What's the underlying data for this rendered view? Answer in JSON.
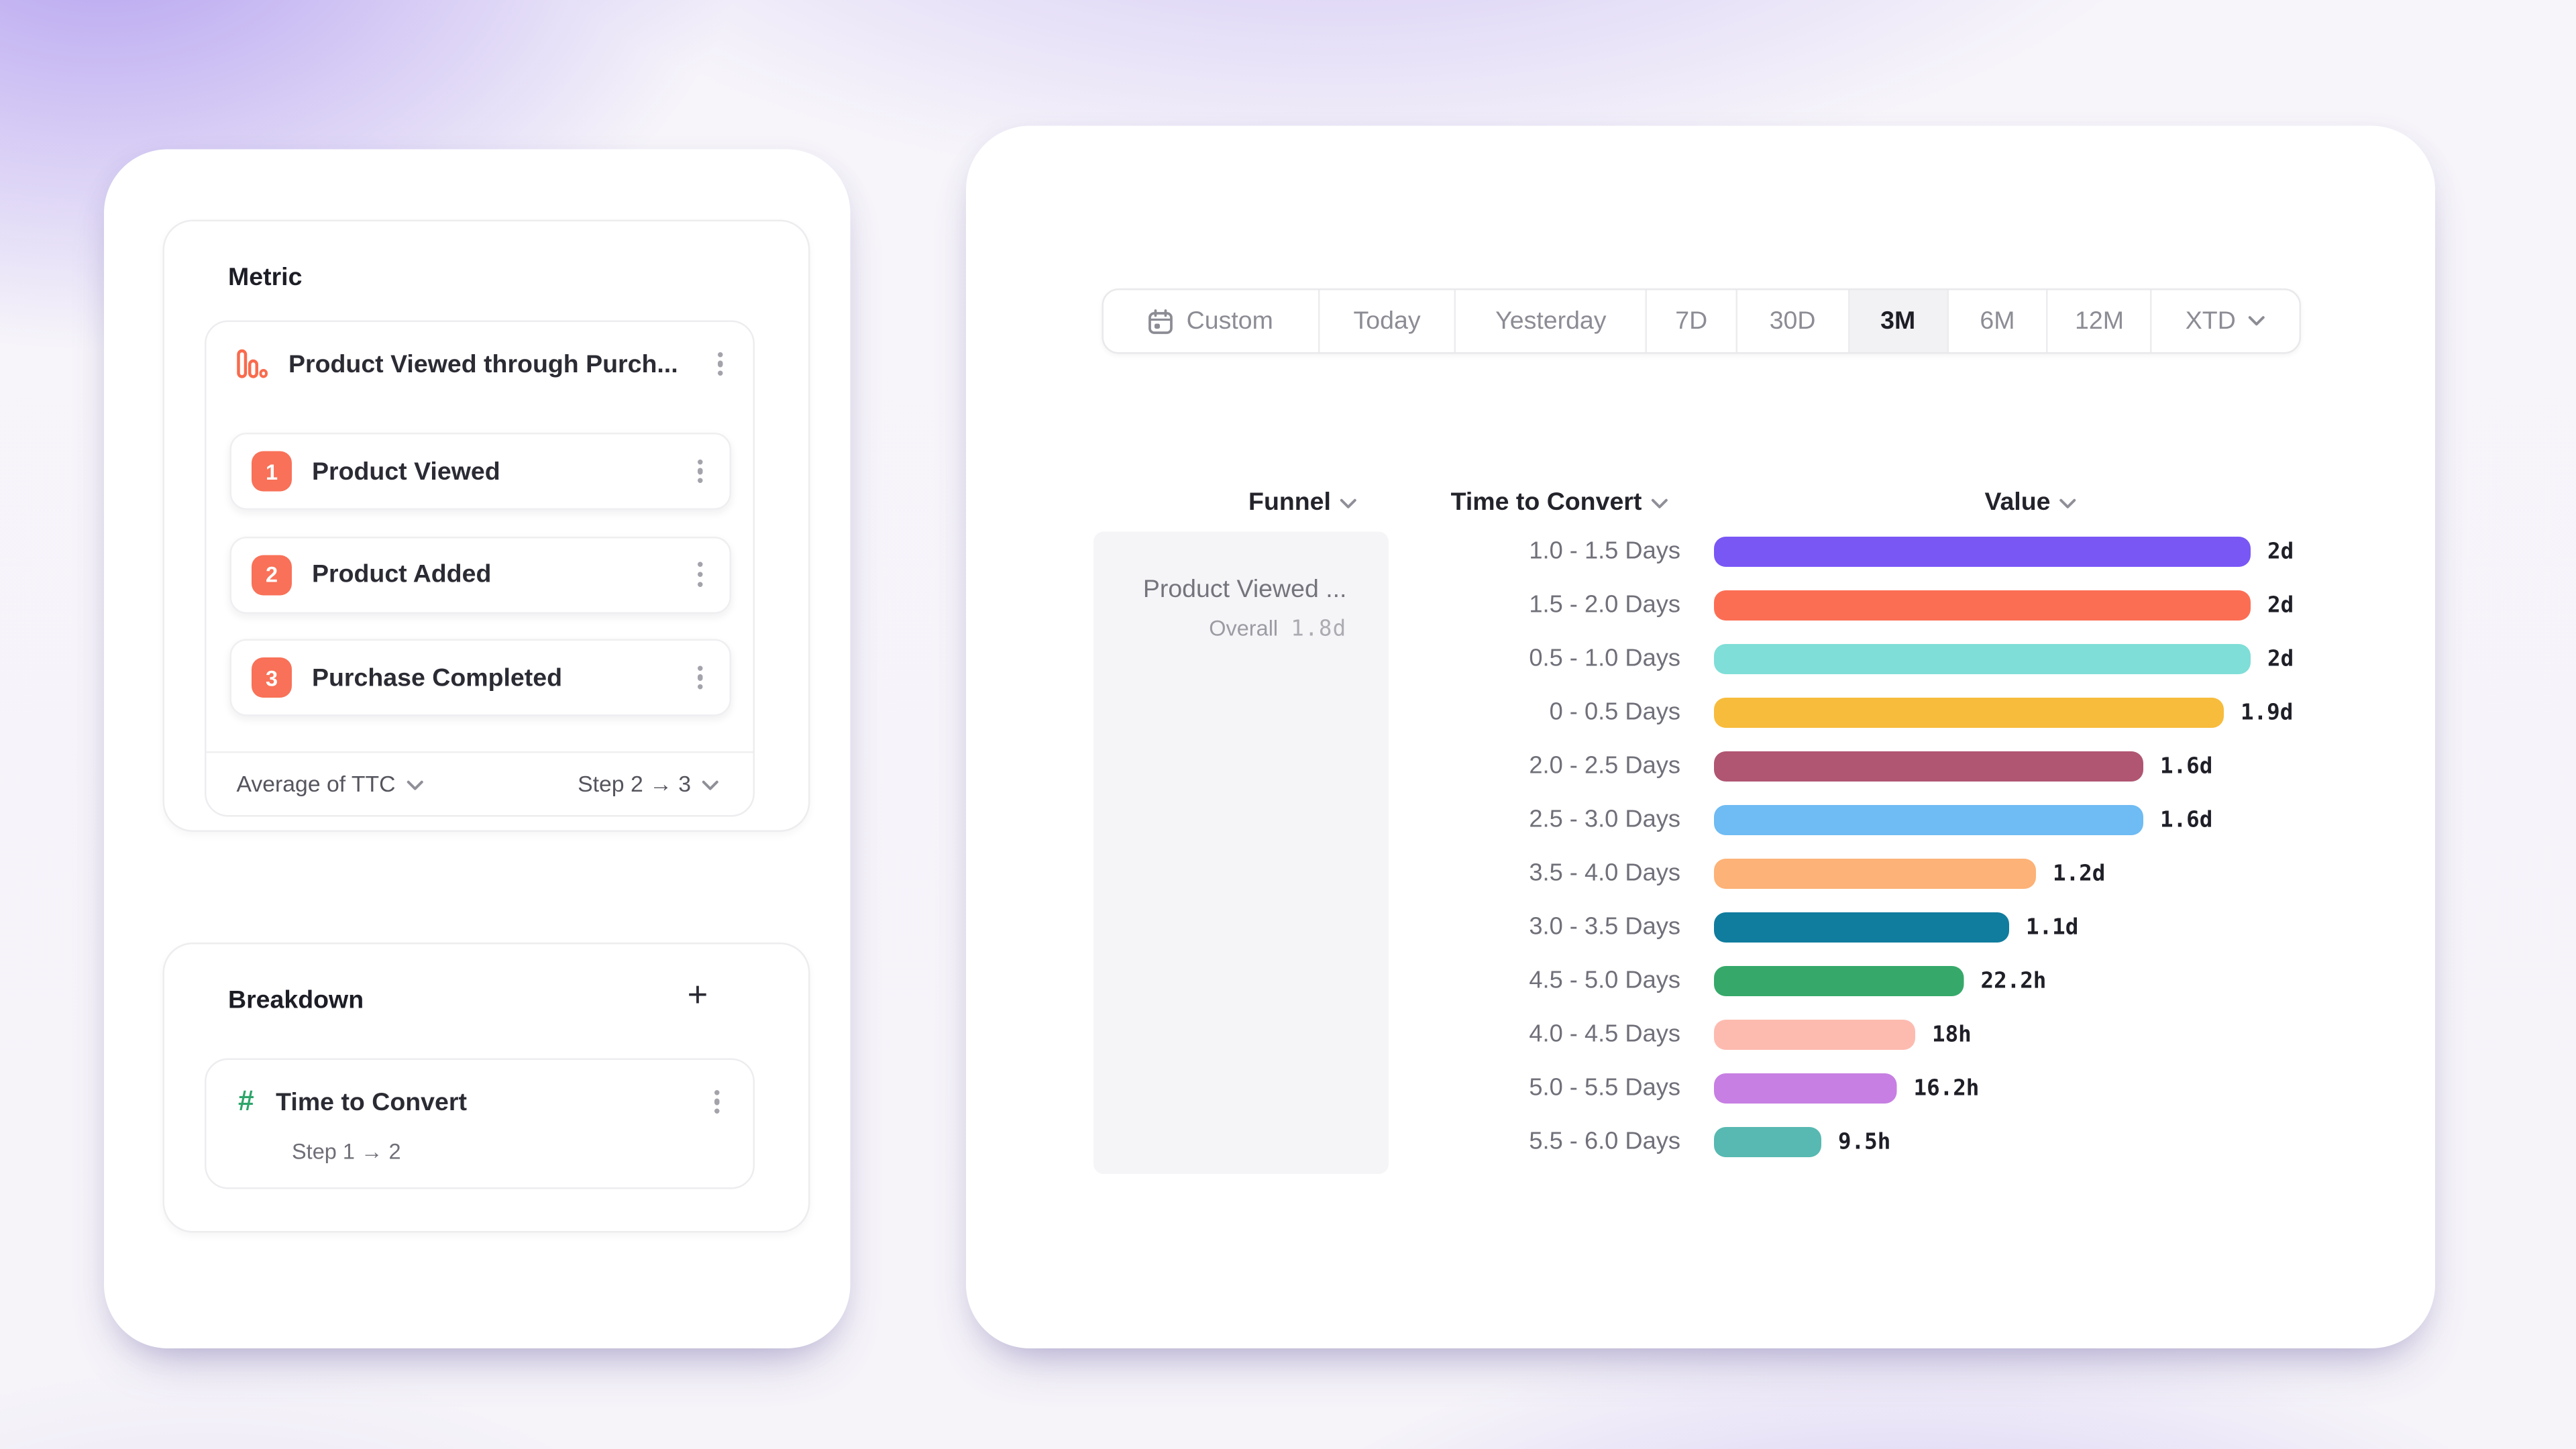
{
  "colors": {
    "accent_salmon": "#F87158",
    "accent_green": "#2CA56A",
    "active_tab_bg": "#F2F2F4",
    "funnel_cell_bg": "#F5F5F7",
    "background_purple": "#9A7CEB"
  },
  "left_panel": {
    "metric": {
      "title": "Metric",
      "definition": {
        "name": "Product Viewed through Purch...",
        "steps": [
          {
            "num": "1",
            "label": "Product Viewed"
          },
          {
            "num": "2",
            "label": "Product Added"
          },
          {
            "num": "3",
            "label": "Purchase Completed"
          }
        ],
        "measure_dropdown": "Average of TTC",
        "step_range_dropdown": "Step 2 → 3"
      }
    },
    "breakdown": {
      "title": "Breakdown",
      "add_button": "+",
      "item": {
        "name": "Time to Convert",
        "subtitle": "Step 1 → 2"
      }
    }
  },
  "right_panel": {
    "date_picker": {
      "selected": "3M",
      "options": [
        {
          "label": "Custom",
          "icon": "calendar-icon"
        },
        {
          "label": "Today"
        },
        {
          "label": "Yesterday"
        },
        {
          "label": "7D"
        },
        {
          "label": "30D"
        },
        {
          "label": "3M",
          "active": true
        },
        {
          "label": "6M"
        },
        {
          "label": "12M"
        },
        {
          "label": "XTD",
          "chevron": true
        }
      ]
    },
    "table_headers": [
      {
        "label": "Funnel"
      },
      {
        "label": "Time to Convert"
      },
      {
        "label": "Value"
      }
    ],
    "funnel_cell": {
      "name": "Product Viewed ...",
      "overall_label": "Overall",
      "overall_value": "1.8d"
    }
  },
  "chart_data": {
    "type": "bar",
    "orientation": "horizontal",
    "xlabel": "Value",
    "ylabel": "Time to Convert",
    "xlim": [
      0,
      2
    ],
    "unit": "days",
    "overall_average": "1.8d",
    "categories": [
      "1.0 - 1.5 Days",
      "1.5 - 2.0 Days",
      "0.5 - 1.0 Days",
      "0 - 0.5 Days",
      "2.0 - 2.5 Days",
      "2.5 - 3.0 Days",
      "3.5 - 4.0 Days",
      "3.0 - 3.5 Days",
      "4.5 - 5.0 Days",
      "4.0 - 4.5 Days",
      "5.0 - 5.5 Days",
      "5.5 - 6.0 Days"
    ],
    "values_days": [
      2,
      2,
      2,
      1.9,
      1.6,
      1.6,
      1.2,
      1.1,
      0.93,
      0.75,
      0.68,
      0.4
    ],
    "value_labels": [
      "2d",
      "2d",
      "2d",
      "1.9d",
      "1.6d",
      "1.6d",
      "1.2d",
      "1.1d",
      "22.2h",
      "18h",
      "16.2h",
      "9.5h"
    ],
    "bar_colors": [
      "#7957F5",
      "#FC6E54",
      "#7FDED7",
      "#F7BC3C",
      "#B05672",
      "#6FBBF3",
      "#FDB277",
      "#107C9E",
      "#36A96A",
      "#FDBBB0",
      "#C77FE3",
      "#57B9B1"
    ]
  }
}
